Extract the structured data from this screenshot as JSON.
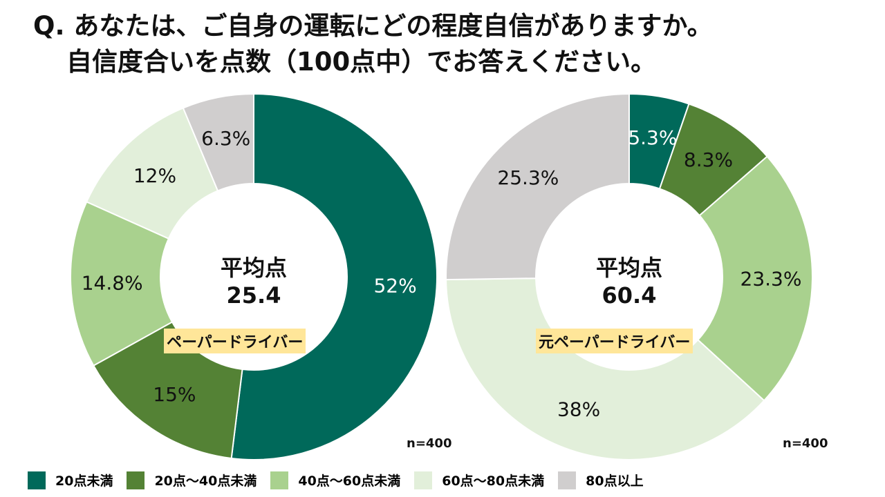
{
  "title": {
    "line1": "Q. あなたは、ご自身の運転にどの程度自信がありますか。",
    "line2": "自信度合いを点数（100点中）でお答えください。"
  },
  "colors": [
    "#00695A",
    "#548235",
    "#A9D18E",
    "#E2EFDA",
    "#D0CECE"
  ],
  "chart_data": [
    {
      "type": "pie",
      "name": "ペーパードライバー",
      "categories": [
        "20点未満",
        "20点～40点未満",
        "40点～60点未満",
        "60点～80点未満",
        "80点以上"
      ],
      "values": [
        52,
        15,
        14.8,
        12,
        6.3
      ],
      "labels": [
        "52%",
        "15%",
        "14.8%",
        "12%",
        "6.3%"
      ],
      "center_label": "平均点",
      "center_value": "25.4",
      "n": "n=400"
    },
    {
      "type": "pie",
      "name": "元ペーパードライバー",
      "categories": [
        "20点未満",
        "20点～40点未満",
        "40点～60点未満",
        "60点～80点未満",
        "80点以上"
      ],
      "values": [
        5.3,
        8.3,
        23.3,
        38,
        25.3
      ],
      "labels": [
        "5.3%",
        "8.3%",
        "23.3%",
        "38%",
        "25.3%"
      ],
      "center_label": "平均点",
      "center_value": "60.4",
      "n": "n=400"
    }
  ],
  "legend": [
    "20点未満",
    "20点～40点未満",
    "40点～60点未満",
    "60点～80点未満",
    "80点以上"
  ]
}
